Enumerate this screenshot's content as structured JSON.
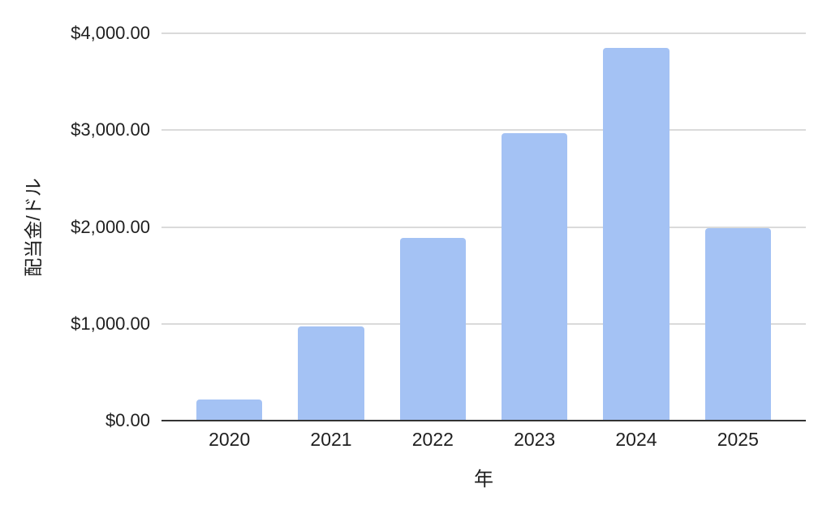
{
  "chart_data": {
    "type": "bar",
    "title": "",
    "categories": [
      "2020",
      "2021",
      "2022",
      "2023",
      "2024",
      "2025"
    ],
    "values": [
      215,
      970,
      1885,
      2965,
      3845,
      1985
    ],
    "xlabel": "年",
    "ylabel": "配当金/ドル",
    "ylim": [
      0,
      4000
    ],
    "y_ticks": [
      {
        "value": 4000,
        "label": "$4,000.00"
      },
      {
        "value": 3000,
        "label": "$3,000.00"
      },
      {
        "value": 2000,
        "label": "$2,000.00"
      },
      {
        "value": 1000,
        "label": "$1,000.00"
      },
      {
        "value": 0,
        "label": "$0.00"
      }
    ],
    "legend_position": "none",
    "grid": true,
    "colors": {
      "bar_fill": "#a4c2f4",
      "gridline": "#dadada",
      "axis_line": "#333333",
      "text": "#1f1f1f",
      "background": "#ffffff"
    }
  }
}
